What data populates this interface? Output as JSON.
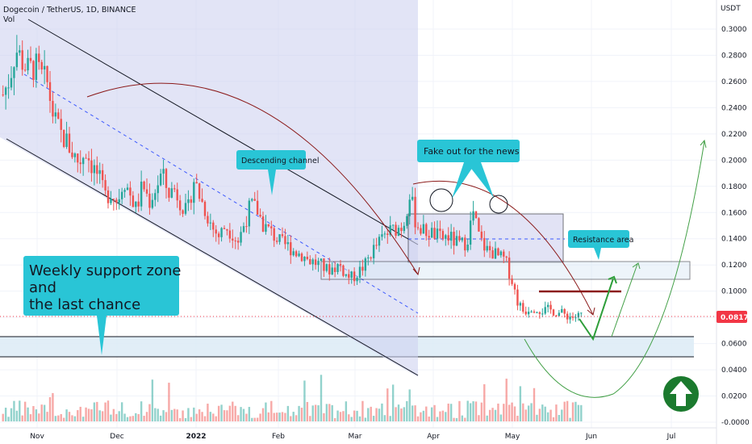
{
  "header": {
    "symbol": "Dogecoin / TetherUS, 1D, BINANCE",
    "volume_label": "Vol"
  },
  "price_axis": {
    "unit": "USDT",
    "ticks": [
      "0.3000",
      "0.2800",
      "0.2600",
      "0.2400",
      "0.2200",
      "0.2000",
      "0.1800",
      "0.1600",
      "0.1400",
      "0.1200",
      "0.1000",
      "0.0800",
      "0.0600",
      "0.0400",
      "0.0200",
      "-0.0000"
    ],
    "current_price": "0.0817",
    "current_price_color": "#f23645"
  },
  "time_axis": {
    "ticks": [
      "Nov",
      "Dec",
      "2022",
      "Feb",
      "Mar",
      "Apr",
      "May",
      "Jun",
      "Jul"
    ]
  },
  "annotations": {
    "descending_channel": "Descending channel",
    "fake_out": "Fake out for the news",
    "resistance": "Resistance area",
    "support_zone": [
      "Weekly support zone",
      "and",
      "the last chance"
    ]
  },
  "colors": {
    "up": "#26a69a",
    "down": "#ef5350",
    "callout": "#29c5d6",
    "channel_fill": "#d1d4f0",
    "projection": "#43a047",
    "arrow_badge": "#1b7a2e"
  },
  "badge_icon": "arrow-up-icon",
  "chart_data": {
    "type": "candlestick",
    "title": "Dogecoin / TetherUS, 1D, BINANCE",
    "ylabel": "USDT",
    "ylim": [
      0,
      0.31
    ],
    "x": [
      "Nov",
      "Dec",
      "2022",
      "Feb",
      "Mar",
      "Apr",
      "May",
      "Jun",
      "Jul"
    ],
    "current_price": 0.0817,
    "levels": {
      "weekly_support_zone": [
        0.05,
        0.066
      ],
      "resistance_area": [
        0.11,
        0.125
      ],
      "resistance_line": 0.1,
      "range_box": [
        0.122,
        0.16
      ]
    },
    "price_path": [
      0.25,
      0.262,
      0.285,
      0.276,
      0.268,
      0.272,
      0.264,
      0.258,
      0.232,
      0.22,
      0.214,
      0.205,
      0.198,
      0.208,
      0.196,
      0.188,
      0.172,
      0.176,
      0.168,
      0.186,
      0.174,
      0.162,
      0.182,
      0.168,
      0.178,
      0.19,
      0.175,
      0.178,
      0.168,
      0.158,
      0.186,
      0.172,
      0.16,
      0.148,
      0.142,
      0.15,
      0.145,
      0.138,
      0.152,
      0.166,
      0.162,
      0.15,
      0.146,
      0.14,
      0.136,
      0.134,
      0.13,
      0.128,
      0.124,
      0.122,
      0.12,
      0.116,
      0.118,
      0.12,
      0.112,
      0.11,
      0.115,
      0.12,
      0.13,
      0.136,
      0.142,
      0.146,
      0.148,
      0.15,
      0.175,
      0.152,
      0.146,
      0.145,
      0.143,
      0.14,
      0.142,
      0.138,
      0.135,
      0.138,
      0.16,
      0.14,
      0.132,
      0.13,
      0.126,
      0.124,
      0.11,
      0.092,
      0.084,
      0.088,
      0.087,
      0.085,
      0.086,
      0.084,
      0.083,
      0.081,
      0.08,
      0.082
    ]
  }
}
